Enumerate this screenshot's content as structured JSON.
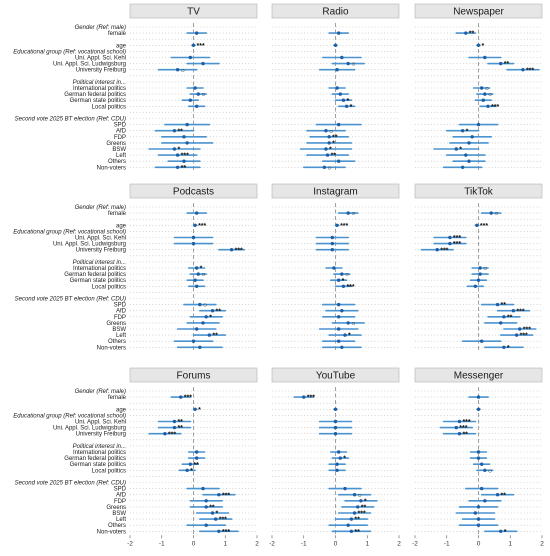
{
  "chart_data": {
    "type": "forest",
    "xlim": [
      -2,
      2
    ],
    "x_ticks": [
      "-2",
      "-1",
      "0",
      "1",
      "2"
    ],
    "panel_order": [
      [
        "TV",
        "Radio",
        "Newspaper"
      ],
      [
        "Podcasts",
        "Instagram",
        "TikTok"
      ],
      [
        "Forums",
        "YouTube",
        "Messenger"
      ]
    ],
    "rows": [
      {
        "label": "Gender (Ref: male)",
        "header": true
      },
      {
        "label": "female"
      },
      {
        "label": "",
        "spacer": true
      },
      {
        "label": "age"
      },
      {
        "label": "Educational group (Ref: vocational school)",
        "header": true
      },
      {
        "label": "Uni. Appl. Sci. Kehl"
      },
      {
        "label": "Uni. Appl. Sci. Ludwigsburg"
      },
      {
        "label": "University Freiburg"
      },
      {
        "label": "",
        "spacer": true
      },
      {
        "label": "Political interest in...",
        "header": true
      },
      {
        "label": "International politics"
      },
      {
        "label": "German federal politics"
      },
      {
        "label": "German state politics"
      },
      {
        "label": "Local politics"
      },
      {
        "label": "",
        "spacer": true
      },
      {
        "label": "Second vote 2025 BT election (Ref: CDU)",
        "header": true
      },
      {
        "label": "SPD"
      },
      {
        "label": "AfD"
      },
      {
        "label": "FDP"
      },
      {
        "label": "Greens"
      },
      {
        "label": "BSW"
      },
      {
        "label": "Left"
      },
      {
        "label": "Others"
      },
      {
        "label": "Non-voters"
      }
    ],
    "estimate_rows": [
      1,
      3,
      5,
      6,
      7,
      10,
      11,
      12,
      13,
      16,
      17,
      18,
      19,
      20,
      21,
      22,
      23
    ],
    "panels": [
      {
        "name": "TV",
        "est": [
          0.1,
          0,
          -0.1,
          0.3,
          -0.5,
          0.05,
          0.15,
          -0.1,
          0.1,
          -0.2,
          -0.6,
          -0.3,
          -0.2,
          -0.6,
          -0.5,
          -0.3,
          -0.5
        ],
        "low": [
          -0.2,
          -0.05,
          -0.7,
          -0.2,
          -1.1,
          -0.2,
          -0.1,
          -0.35,
          -0.15,
          -0.9,
          -1.2,
          -1.0,
          -1.0,
          -1.4,
          -1.1,
          -0.8,
          -1.2
        ],
        "high": [
          0.4,
          0.05,
          0.5,
          0.8,
          0.1,
          0.3,
          0.4,
          0.15,
          0.35,
          0.5,
          0,
          0.4,
          0.6,
          0.2,
          0.1,
          0.2,
          0.2
        ],
        "sig": [
          "",
          "***",
          "",
          "",
          "○",
          "",
          "○",
          "",
          "",
          "",
          "**",
          "",
          "",
          "*",
          "***",
          "",
          "**"
        ]
      },
      {
        "name": "Radio",
        "est": [
          0.1,
          0,
          0.2,
          0.4,
          0.05,
          0.05,
          0.15,
          0.25,
          0.35,
          0.1,
          -0.3,
          -0.2,
          -0.2,
          -0.3,
          -0.25,
          0.1,
          -0.35
        ],
        "low": [
          -0.2,
          -0.05,
          -0.4,
          -0.1,
          -0.5,
          -0.2,
          -0.1,
          0,
          0.1,
          -0.6,
          -0.9,
          -0.8,
          -0.9,
          -1.1,
          -0.9,
          -0.4,
          -1.0
        ],
        "high": [
          0.4,
          0.05,
          0.8,
          0.9,
          0.6,
          0.3,
          0.4,
          0.5,
          0.6,
          0.8,
          0.3,
          0.4,
          0.5,
          0.5,
          0.4,
          0.6,
          0.3
        ],
        "sig": [
          "",
          "",
          "",
          "○",
          "",
          "",
          "",
          "*",
          "*",
          "",
          "○",
          "**",
          "*",
          "*",
          "**",
          "",
          "○"
        ]
      },
      {
        "name": "Newspaper",
        "est": [
          -0.4,
          0,
          0.2,
          0.7,
          1.4,
          0.1,
          0.2,
          0.15,
          0.3,
          0,
          -0.5,
          -0.2,
          -0.3,
          -0.7,
          -0.4,
          -0.3,
          -0.5
        ],
        "low": [
          -0.7,
          -0.05,
          -0.3,
          0.3,
          0.9,
          -0.15,
          -0.05,
          -0.1,
          0.05,
          -0.6,
          -1.0,
          -0.8,
          -0.9,
          -1.4,
          -1.0,
          -0.8,
          -1.1
        ],
        "high": [
          -0.1,
          0.05,
          0.7,
          1.1,
          1.9,
          0.35,
          0.45,
          0.4,
          0.55,
          0.6,
          0,
          0.4,
          0.3,
          0,
          0.2,
          0.2,
          0.1
        ],
        "sig": [
          "**",
          "*",
          "",
          "**",
          "***",
          "○",
          "○",
          "",
          "***",
          "",
          "*",
          "",
          "",
          "*",
          "",
          "",
          ""
        ]
      },
      {
        "name": "Podcasts",
        "est": [
          0.1,
          0.05,
          0,
          0,
          1.2,
          0.1,
          0.15,
          0.05,
          0.1,
          0.2,
          0.6,
          0.4,
          0.3,
          0.1,
          0.5,
          0,
          0.2
        ],
        "low": [
          -0.2,
          0,
          -0.6,
          -0.6,
          0.8,
          -0.15,
          -0.1,
          -0.2,
          -0.15,
          -0.3,
          0.2,
          -0.1,
          -0.2,
          -0.5,
          0,
          -0.6,
          -0.5
        ],
        "high": [
          0.4,
          0.1,
          0.6,
          0.6,
          1.6,
          0.35,
          0.4,
          0.3,
          0.35,
          0.7,
          1.0,
          0.9,
          0.8,
          0.7,
          1.0,
          0.6,
          0.9
        ],
        "sig": [
          "",
          "***",
          "",
          "",
          "***",
          "*",
          "○",
          "",
          "",
          "○",
          "**",
          "*",
          "",
          "",
          "**",
          "",
          ""
        ]
      },
      {
        "name": "Instagram",
        "est": [
          0.4,
          0.05,
          -0.1,
          -0.1,
          -0.1,
          -0.05,
          0.2,
          0.1,
          0.25,
          0.1,
          0.2,
          0.1,
          0.4,
          0.1,
          0.3,
          0.1,
          0.2
        ],
        "low": [
          0.1,
          0,
          -0.6,
          -0.6,
          -0.6,
          -0.3,
          -0.05,
          -0.15,
          0,
          -0.4,
          -0.3,
          -0.4,
          -0.1,
          -0.5,
          -0.2,
          -0.4,
          -0.4
        ],
        "high": [
          0.7,
          0.1,
          0.4,
          0.4,
          0.4,
          0.2,
          0.45,
          0.35,
          0.5,
          0.6,
          0.7,
          0.6,
          0.9,
          0.7,
          0.8,
          0.6,
          0.8
        ],
        "sig": [
          "○",
          "***",
          "",
          "",
          "",
          "",
          "○",
          "*",
          "***",
          "",
          "",
          "",
          "○",
          "",
          "*",
          "",
          ""
        ]
      },
      {
        "name": "TikTok",
        "est": [
          0.4,
          -0.05,
          -0.9,
          -0.9,
          -1.3,
          0.05,
          0.05,
          0,
          -0.1,
          0.6,
          1.1,
          0.8,
          0.7,
          1.3,
          1.2,
          0.1,
          0.8
        ],
        "low": [
          0.1,
          -0.1,
          -1.4,
          -1.4,
          -1.8,
          -0.2,
          -0.2,
          -0.25,
          -0.35,
          0.1,
          0.6,
          0.3,
          0.2,
          0.8,
          0.7,
          -0.5,
          0.2
        ],
        "high": [
          0.7,
          0,
          -0.4,
          -0.4,
          -0.8,
          0.3,
          0.3,
          0.25,
          0.15,
          1.1,
          1.6,
          1.3,
          1.2,
          1.8,
          1.7,
          0.7,
          1.4
        ],
        "sig": [
          "○",
          "***",
          "***",
          "***",
          "***",
          "○",
          "",
          "",
          "",
          "**",
          "***",
          "**",
          "",
          "***",
          "***",
          "",
          "*"
        ]
      },
      {
        "name": "Forums",
        "est": [
          -0.4,
          0.05,
          -0.6,
          -0.6,
          -0.9,
          0.1,
          0.1,
          -0.1,
          -0.2,
          0.3,
          0.8,
          0.4,
          0.4,
          0.6,
          0.7,
          0.4,
          0.8
        ],
        "low": [
          -0.7,
          0,
          -1.1,
          -1.1,
          -1.4,
          -0.15,
          -0.15,
          -0.35,
          -0.45,
          -0.2,
          0.3,
          -0.1,
          -0.1,
          0.1,
          0.2,
          -0.2,
          0.2
        ],
        "high": [
          -0.1,
          0.1,
          -0.1,
          -0.1,
          -0.4,
          0.35,
          0.35,
          0.15,
          0.05,
          0.8,
          1.3,
          0.9,
          0.9,
          1.1,
          1.2,
          1.0,
          1.4
        ],
        "sig": [
          "***",
          "*",
          "**",
          "**",
          "***",
          "",
          "",
          "**",
          "*",
          "",
          "***",
          "",
          "**",
          "*",
          "***",
          "",
          "***"
        ]
      },
      {
        "name": "YouTube",
        "est": [
          -1.0,
          0,
          0,
          0,
          0,
          0.1,
          0.15,
          0.05,
          0.05,
          0.3,
          0.6,
          0.8,
          0.7,
          0.6,
          0.5,
          0.4,
          0.5
        ],
        "low": [
          -1.3,
          -0.05,
          -0.5,
          -0.5,
          -0.5,
          -0.15,
          -0.1,
          -0.2,
          -0.2,
          -0.2,
          0.1,
          0.3,
          0.2,
          0.1,
          0,
          -0.2,
          -0.1
        ],
        "high": [
          -0.7,
          0.05,
          0.5,
          0.5,
          0.5,
          0.35,
          0.4,
          0.3,
          0.3,
          0.8,
          1.1,
          1.3,
          1.2,
          1.1,
          1.0,
          1.0,
          1.1
        ],
        "sig": [
          "***",
          "",
          "",
          "",
          "",
          "",
          "*",
          "",
          "",
          "",
          "○",
          "*",
          "**",
          "***",
          "**",
          "",
          "**"
        ]
      },
      {
        "name": "Messenger",
        "est": [
          0,
          0,
          -0.6,
          -0.7,
          -0.6,
          0,
          0,
          0.1,
          0.2,
          0.1,
          0.6,
          0.2,
          0,
          -0.1,
          0,
          0,
          0.7
        ],
        "low": [
          -0.3,
          -0.05,
          -1.1,
          -1.2,
          -1.1,
          -0.25,
          -0.25,
          -0.15,
          -0.05,
          -0.4,
          0.1,
          -0.3,
          -0.6,
          -0.7,
          -0.5,
          -0.6,
          0.2
        ],
        "high": [
          0.3,
          0.05,
          -0.1,
          -0.2,
          -0.1,
          0.25,
          0.25,
          0.35,
          0.45,
          0.6,
          1.1,
          0.7,
          0.6,
          0.5,
          0.5,
          0.6,
          1.2
        ],
        "sig": [
          "",
          "",
          "***",
          "***",
          "**",
          "",
          "",
          "",
          "○",
          "",
          "**",
          "",
          "",
          "",
          "",
          "",
          "*"
        ]
      }
    ]
  }
}
